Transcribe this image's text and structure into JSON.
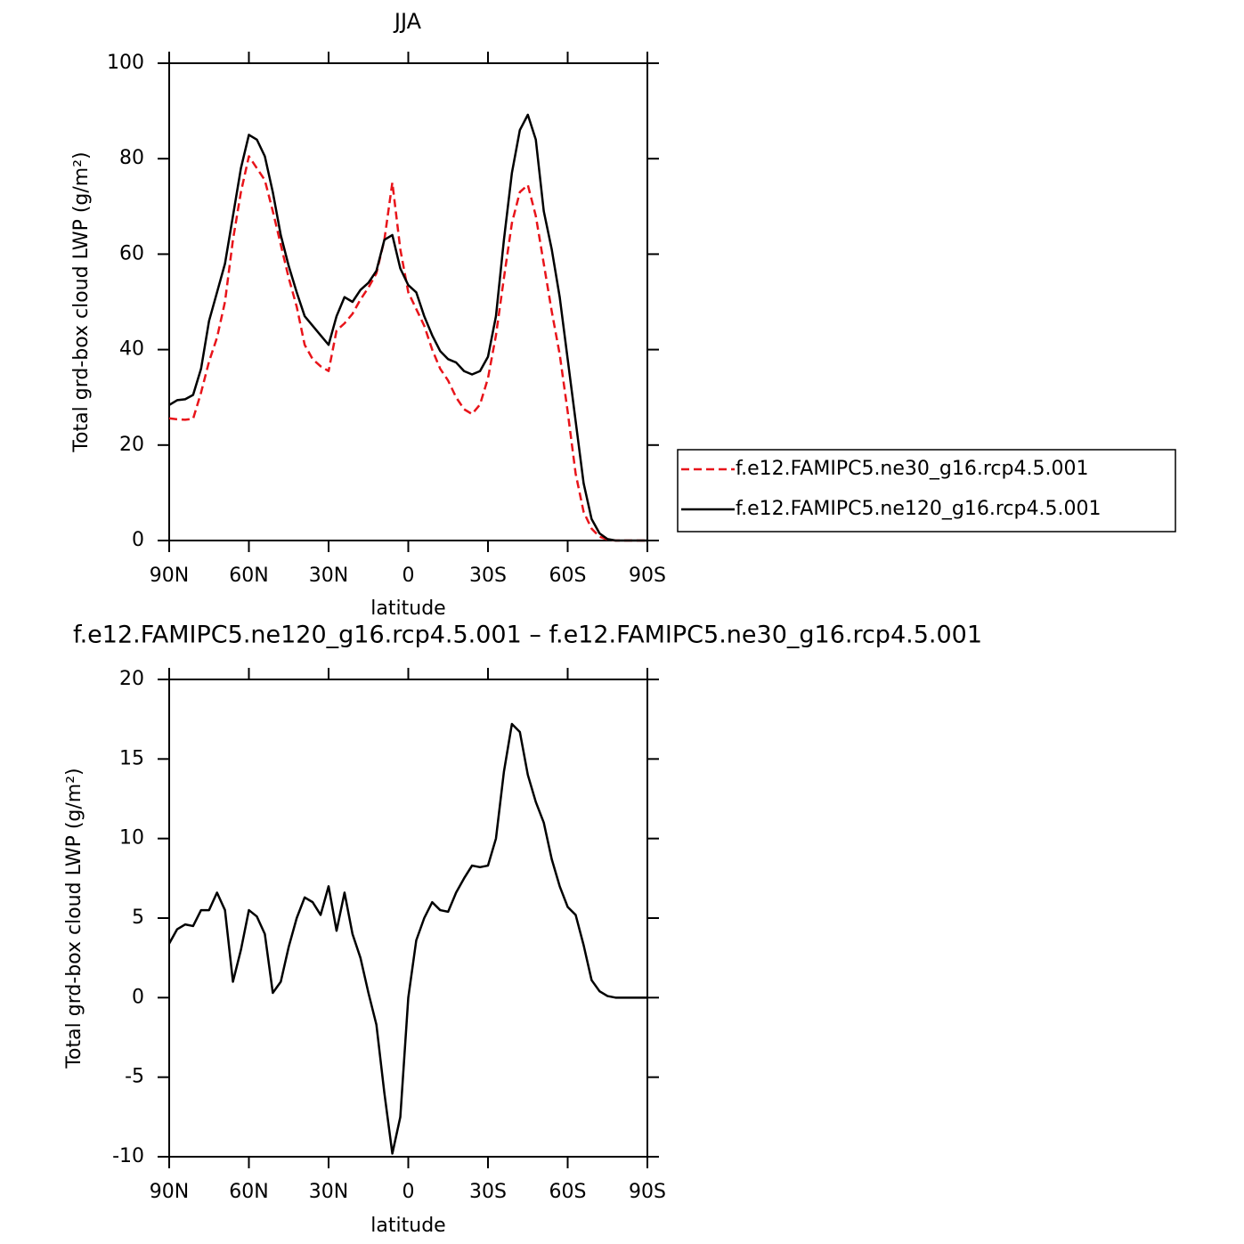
{
  "chart_data": [
    {
      "type": "line",
      "title": "JJA",
      "xlabel": "latitude",
      "ylabel": "Total grd-box cloud LWP (g/m²)",
      "x": [
        90,
        87,
        84,
        81,
        78,
        75,
        72,
        69,
        66,
        63,
        60,
        57,
        54,
        51,
        48,
        45,
        42,
        39,
        36,
        33,
        30,
        27,
        24,
        21,
        18,
        15,
        12,
        9,
        6,
        3,
        0,
        -3,
        -6,
        -9,
        -12,
        -15,
        -18,
        -21,
        -24,
        -27,
        -30,
        -33,
        -36,
        -39,
        -42,
        -45,
        -48,
        -51,
        -54,
        -57,
        -60,
        -63,
        -66,
        -69,
        -72,
        -75,
        -78,
        -81,
        -84,
        -87,
        -90
      ],
      "series": [
        {
          "name": "f.e12.FAMIPC5.ne30_g16.rcp4.5.001",
          "color": "#e8141a",
          "linestyle": "dashed",
          "values": [
            25.6,
            25.4,
            25.3,
            25.5,
            31,
            37.5,
            42.5,
            50,
            63,
            73,
            80.5,
            78,
            75.5,
            69,
            62,
            55,
            49,
            41,
            38,
            36.5,
            35.5,
            44,
            45.5,
            47.5,
            50.5,
            53,
            56,
            63,
            75,
            61,
            52,
            48.5,
            45,
            40,
            36,
            33.5,
            30,
            27.5,
            26.5,
            28.5,
            34,
            43,
            55,
            66.5,
            73,
            74.5,
            68,
            58,
            48,
            39,
            27,
            14,
            6,
            2.5,
            0.8,
            0.2,
            0,
            0,
            0,
            0,
            0
          ]
        },
        {
          "name": "f.e12.FAMIPC5.ne120_g16.rcp4.5.001",
          "color": "#000000",
          "linestyle": "solid",
          "values": [
            28.4,
            29.4,
            29.6,
            30.5,
            36,
            46,
            52,
            58,
            68,
            78,
            85,
            84,
            80.5,
            73,
            64,
            57.5,
            52,
            47,
            45,
            43,
            41,
            47,
            51,
            50,
            52.5,
            54,
            56.5,
            63,
            64,
            57,
            53.5,
            52,
            47,
            43,
            39.7,
            38,
            37.3,
            35.5,
            34.8,
            35.5,
            38.5,
            47,
            63,
            77,
            86,
            89.2,
            84,
            69,
            61,
            51,
            38,
            25,
            12,
            4.5,
            1.5,
            0.3,
            0,
            0,
            0,
            0,
            0
          ]
        }
      ],
      "xlim": [
        90,
        -90
      ],
      "xticks": [
        {
          "value": 90,
          "label": "90N"
        },
        {
          "value": 60,
          "label": "60N"
        },
        {
          "value": 30,
          "label": "30N"
        },
        0,
        {
          "value": -30,
          "label": "30S"
        },
        {
          "value": -60,
          "label": "60S"
        },
        {
          "value": -90,
          "label": "90S"
        }
      ],
      "ylim": [
        0,
        100
      ],
      "yticks": [
        0,
        20,
        40,
        60,
        80,
        100
      ],
      "legend": "outside-right"
    },
    {
      "type": "line",
      "title": "f.e12.FAMIPC5.ne120_g16.rcp4.5.001 – f.e12.FAMIPC5.ne30_g16.rcp4.5.001",
      "xlabel": "latitude",
      "ylabel": "Total grd-box cloud LWP (g/m²)",
      "x": [
        90,
        87,
        84,
        81,
        78,
        75,
        72,
        69,
        66,
        63,
        60,
        57,
        54,
        51,
        48,
        45,
        42,
        39,
        36,
        33,
        30,
        27,
        24,
        21,
        18,
        15,
        12,
        9,
        6,
        3,
        0,
        -3,
        -6,
        -9,
        -12,
        -15,
        -18,
        -21,
        -24,
        -27,
        -30,
        -33,
        -36,
        -39,
        -42,
        -45,
        -48,
        -51,
        -54,
        -57,
        -60,
        -63,
        -66,
        -69,
        -72,
        -75,
        -78,
        -81,
        -84,
        -87,
        -90
      ],
      "series": [
        {
          "color": "#000000",
          "linestyle": "solid",
          "values": [
            3.4,
            4.3,
            4.6,
            4.5,
            5.5,
            5.5,
            6.6,
            5.5,
            1,
            3,
            5.5,
            5.1,
            4,
            0.3,
            1,
            3.2,
            5,
            6.3,
            6,
            5.2,
            7,
            4.2,
            6.6,
            4,
            2.5,
            0.3,
            -1.7,
            -6,
            -9.8,
            -7.5,
            0,
            3.6,
            5,
            6,
            5.5,
            5.4,
            6.6,
            7.5,
            8.3,
            8.2,
            8.3,
            10,
            14.2,
            17.2,
            16.7,
            14,
            12.3,
            11,
            8.7,
            7,
            5.7,
            5.2,
            3.3,
            1.1,
            0.4,
            0.1,
            0,
            0,
            0,
            0,
            0
          ]
        }
      ],
      "xlim": [
        90,
        -90
      ],
      "xticks": [
        {
          "value": 90,
          "label": "90N"
        },
        {
          "value": 60,
          "label": "60N"
        },
        {
          "value": 30,
          "label": "30N"
        },
        0,
        {
          "value": -30,
          "label": "30S"
        },
        {
          "value": -60,
          "label": "60S"
        },
        {
          "value": -90,
          "label": "90S"
        }
      ],
      "ylim": [
        -10,
        20
      ],
      "yticks": [
        -10,
        -5,
        0,
        5,
        10,
        15,
        20
      ]
    }
  ]
}
